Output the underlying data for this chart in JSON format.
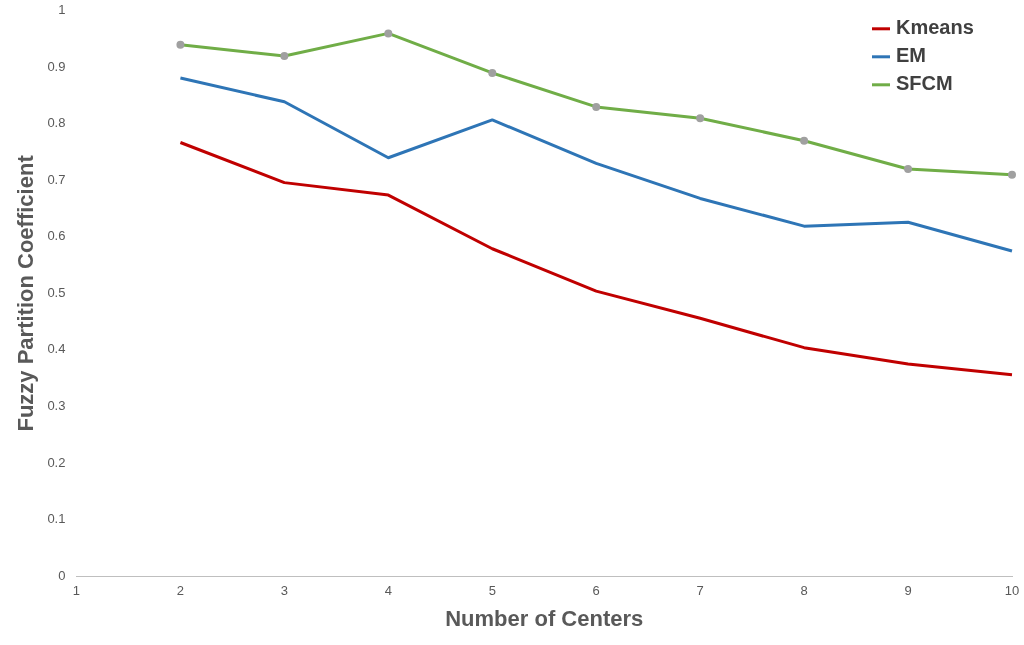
{
  "chart_data": {
    "type": "line",
    "xlabel": "Number of Centers",
    "ylabel": "Fuzzy Partition Coefficient",
    "x": [
      2,
      3,
      4,
      5,
      6,
      7,
      8,
      9,
      10
    ],
    "xlim": [
      1,
      10
    ],
    "xticks": [
      1,
      2,
      3,
      4,
      5,
      6,
      7,
      8,
      9,
      10
    ],
    "ylim": [
      0,
      1
    ],
    "yticks": [
      0,
      0.1,
      0.2,
      0.3,
      0.4,
      0.5,
      0.6,
      0.7,
      0.8,
      0.9,
      1
    ],
    "grid": false,
    "legend": "top right",
    "marker": "none",
    "line_style": "solid",
    "series": [
      {
        "name": "Kmeans",
        "color": "#c00000",
        "values": [
          0.767,
          0.696,
          0.674,
          0.579,
          0.504,
          0.456,
          0.404,
          0.375,
          0.356
        ]
      },
      {
        "name": "EM",
        "color": "#2e75b6",
        "values": [
          0.881,
          0.839,
          0.74,
          0.807,
          0.73,
          0.668,
          0.619,
          0.626,
          0.575
        ]
      },
      {
        "name": "SFCM",
        "color": "#70ad47",
        "marker": "circle",
        "values": [
          0.94,
          0.92,
          0.96,
          0.89,
          0.83,
          0.81,
          0.77,
          0.72,
          0.71
        ]
      }
    ]
  }
}
